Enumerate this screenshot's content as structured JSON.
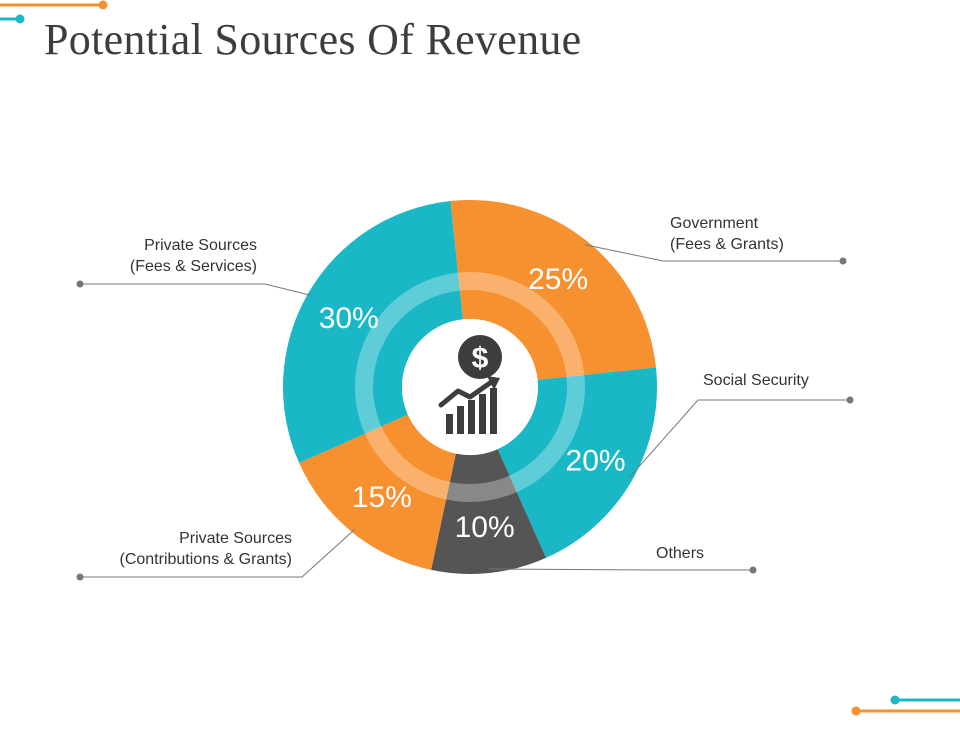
{
  "title": "Potential Sources Of Revenue",
  "colors": {
    "teal": "#1ab8c6",
    "orange": "#f7902e",
    "gray": "#555555",
    "title": "#3d3d3d",
    "leader": "#777777"
  },
  "center_icon": "dollar-growth-chart-icon",
  "center_symbol": "$",
  "chart_data": {
    "type": "pie",
    "style": "donut",
    "title": "Potential Sources Of Revenue",
    "slices": [
      {
        "label_lines": [
          "Government",
          "(Fees & Grants)"
        ],
        "value": 25,
        "display": "25%",
        "color": "#f7902e"
      },
      {
        "label_lines": [
          "Social Security"
        ],
        "value": 20,
        "display": "20%",
        "color": "#1ab8c6"
      },
      {
        "label_lines": [
          "Others"
        ],
        "value": 10,
        "display": "10%",
        "color": "#555555"
      },
      {
        "label_lines": [
          "Private Sources",
          "(Contributions & Grants)"
        ],
        "value": 15,
        "display": "15%",
        "color": "#f7902e"
      },
      {
        "label_lines": [
          "Private Sources",
          "(Fees & Services)"
        ],
        "value": 30,
        "display": "30%",
        "color": "#1ab8c6"
      }
    ]
  }
}
